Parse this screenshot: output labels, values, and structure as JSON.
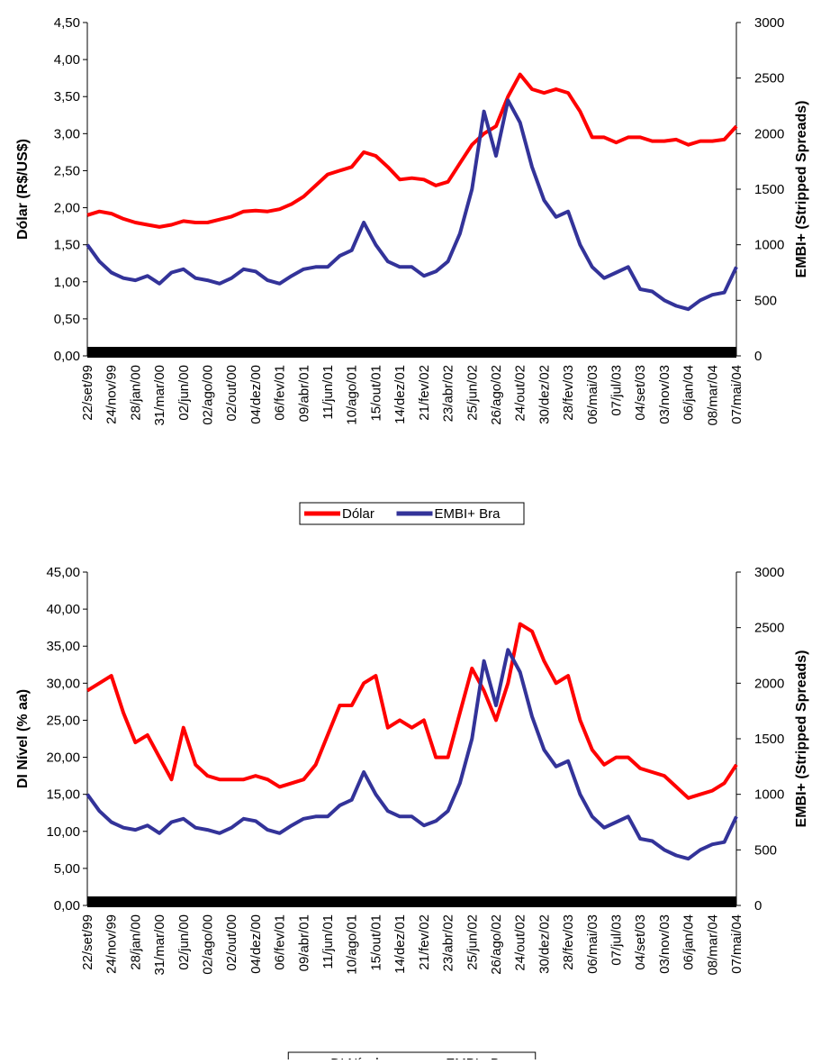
{
  "chart_data": [
    {
      "type": "line",
      "y_label": "Dólar (R$/US$)",
      "y2_label": "EMBI+ (Stripped Spreads)",
      "categories": [
        "22/set/99",
        null,
        "24/nov/99",
        null,
        "28/jan/00",
        null,
        "31/mar/00",
        null,
        "02/jun/00",
        null,
        "02/ago/00",
        null,
        "02/out/00",
        null,
        "04/dez/00",
        null,
        "06/fev/01",
        null,
        "09/abr/01",
        null,
        "11/jun/01",
        null,
        "10/ago/01",
        null,
        "15/out/01",
        null,
        "14/dez/01",
        null,
        "21/fev/02",
        null,
        "23/abr/02",
        null,
        "25/jun/02",
        null,
        "26/ago/02",
        null,
        "24/out/02",
        null,
        "30/dez/02",
        null,
        "28/fev/03",
        null,
        "06/mai/03",
        null,
        "07/jul/03",
        null,
        "04/set/03",
        null,
        "03/nov/03",
        null,
        "06/jan/04",
        null,
        "08/mar/04",
        null,
        "07/mai/04"
      ],
      "series": [
        {
          "name": "Dólar",
          "color": "#ff0000",
          "values": [
            1.9,
            1.95,
            1.92,
            1.85,
            1.8,
            1.77,
            1.74,
            1.77,
            1.82,
            1.8,
            1.8,
            1.84,
            1.88,
            1.95,
            1.96,
            1.95,
            1.98,
            2.05,
            2.15,
            2.3,
            2.45,
            2.5,
            2.55,
            2.75,
            2.7,
            2.55,
            2.38,
            2.4,
            2.38,
            2.3,
            2.35,
            2.6,
            2.85,
            3.0,
            3.1,
            3.5,
            3.8,
            3.6,
            3.55,
            3.6,
            3.55,
            3.3,
            2.95,
            2.95,
            2.88,
            2.95,
            2.95,
            2.9,
            2.9,
            2.92,
            2.85,
            2.9,
            2.9,
            2.92,
            3.1
          ]
        },
        {
          "name": "EMBI+ Bra",
          "color": "#333399",
          "axis": "y2",
          "values": [
            1000,
            850,
            750,
            700,
            680,
            720,
            650,
            750,
            780,
            700,
            680,
            650,
            700,
            780,
            760,
            680,
            650,
            720,
            780,
            800,
            800,
            900,
            950,
            1200,
            1000,
            850,
            800,
            800,
            720,
            760,
            850,
            1100,
            1500,
            2200,
            1800,
            2300,
            2100,
            1700,
            1400,
            1250,
            1300,
            1000,
            800,
            700,
            750,
            800,
            600,
            580,
            500,
            450,
            420,
            500,
            550,
            570,
            800
          ]
        }
      ],
      "ylim": [
        0,
        4.5
      ],
      "yticks": [
        {
          "value": 0,
          "label": "0,00"
        },
        {
          "value": 0.5,
          "label": "0,50"
        },
        {
          "value": 1,
          "label": "1,00"
        },
        {
          "value": 1.5,
          "label": "1,50"
        },
        {
          "value": 2,
          "label": "2,00"
        },
        {
          "value": 2.5,
          "label": "2,50"
        },
        {
          "value": 3,
          "label": "3,00"
        },
        {
          "value": 3.5,
          "label": "3,50"
        },
        {
          "value": 4,
          "label": "4,00"
        },
        {
          "value": 4.5,
          "label": "4,50"
        }
      ],
      "y2lim": [
        0,
        3000
      ],
      "y2ticks": [
        0,
        500,
        1000,
        1500,
        2000,
        2500,
        3000
      ],
      "legend": "bottom"
    },
    {
      "type": "line",
      "y_label": "DI Nível (% aa)",
      "y2_label": "EMBI+ (Stripped Spreads)",
      "categories": [
        "22/set/99",
        null,
        "24/nov/99",
        null,
        "28/jan/00",
        null,
        "31/mar/00",
        null,
        "02/jun/00",
        null,
        "02/ago/00",
        null,
        "02/out/00",
        null,
        "04/dez/00",
        null,
        "06/fev/01",
        null,
        "09/abr/01",
        null,
        "11/jun/01",
        null,
        "10/ago/01",
        null,
        "15/out/01",
        null,
        "14/dez/01",
        null,
        "21/fev/02",
        null,
        "23/abr/02",
        null,
        "25/jun/02",
        null,
        "26/ago/02",
        null,
        "24/out/02",
        null,
        "30/dez/02",
        null,
        "28/fev/03",
        null,
        "06/mai/03",
        null,
        "07/jul/03",
        null,
        "04/set/03",
        null,
        "03/nov/03",
        null,
        "06/jan/04",
        null,
        "08/mar/04",
        null,
        "07/mai/04"
      ],
      "series": [
        {
          "name": "DI Nível",
          "color": "#ff0000",
          "values": [
            29,
            30,
            31,
            26,
            22,
            23,
            20,
            17,
            24,
            19,
            17.5,
            17,
            17,
            17,
            17.5,
            17,
            16,
            16.5,
            17,
            19,
            23,
            27,
            27,
            30,
            31,
            24,
            25,
            24,
            25,
            20,
            20,
            26,
            32,
            29,
            25,
            30,
            38,
            37,
            33,
            30,
            31,
            25,
            21,
            19,
            20,
            20,
            18.5,
            18,
            17.5,
            16,
            14.5,
            15,
            15.5,
            16.5,
            19
          ]
        },
        {
          "name": "EMBI+ Bra",
          "color": "#333399",
          "axis": "y2",
          "values": [
            1000,
            850,
            750,
            700,
            680,
            720,
            650,
            750,
            780,
            700,
            680,
            650,
            700,
            780,
            760,
            680,
            650,
            720,
            780,
            800,
            800,
            900,
            950,
            1200,
            1000,
            850,
            800,
            800,
            720,
            760,
            850,
            1100,
            1500,
            2200,
            1800,
            2300,
            2100,
            1700,
            1400,
            1250,
            1300,
            1000,
            800,
            700,
            750,
            800,
            600,
            580,
            500,
            450,
            420,
            500,
            550,
            570,
            800
          ]
        }
      ],
      "ylim": [
        0,
        45
      ],
      "yticks": [
        {
          "value": 0,
          "label": "0,00"
        },
        {
          "value": 5,
          "label": "5,00"
        },
        {
          "value": 10,
          "label": "10,00"
        },
        {
          "value": 15,
          "label": "15,00"
        },
        {
          "value": 20,
          "label": "20,00"
        },
        {
          "value": 25,
          "label": "25,00"
        },
        {
          "value": 30,
          "label": "30,00"
        },
        {
          "value": 35,
          "label": "35,00"
        },
        {
          "value": 40,
          "label": "40,00"
        },
        {
          "value": 45,
          "label": "45,00"
        }
      ],
      "y2lim": [
        0,
        3000
      ],
      "y2ticks": [
        0,
        500,
        1000,
        1500,
        2000,
        2500,
        3000
      ],
      "legend": "bottom"
    }
  ]
}
